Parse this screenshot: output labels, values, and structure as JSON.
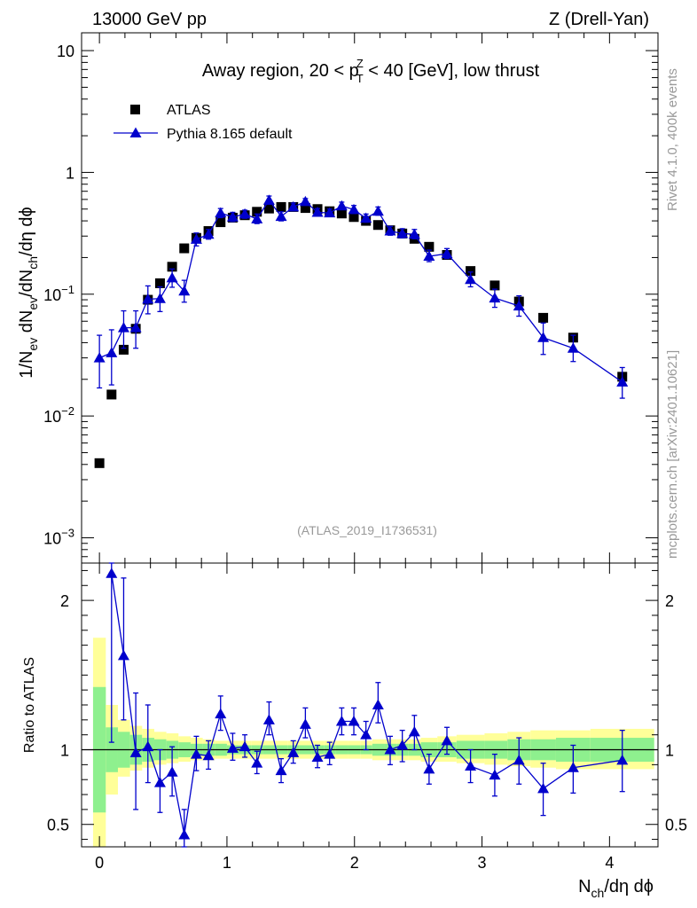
{
  "header": {
    "energy": "13000 GeV pp",
    "process": "Z (Drell-Yan)"
  },
  "side_labels": {
    "rivet": "Rivet 4.1.0,  400k events",
    "site": "mcplots.cern.ch [arXiv:2401.10621]"
  },
  "chart_data": {
    "type": "scatter",
    "title": "Away region, 20 < p_T^Z < 40 [GeV], low thrust",
    "title_parts": {
      "pre": "Away region, 20 < p",
      "sup": "Z",
      "sub": "T",
      "post": " < 40 [GeV], low thrust"
    },
    "watermark": "(ATLAS_2019_I1736531)",
    "xlabel": "N_ch/dη dϕ",
    "ylabel": "1/N_ev dN_ev/dN_ch/dη dϕ",
    "xlim": [
      -0.14,
      4.38
    ],
    "ylim": [
      0.00062,
      14
    ],
    "yscale": "log",
    "x_ticks": [
      "0",
      "1",
      "2",
      "3",
      "4"
    ],
    "y_ticks": [
      {
        "base": "10",
        "exp": "−3",
        "value": 0.001
      },
      {
        "base": "10",
        "exp": "−2",
        "value": 0.01
      },
      {
        "base": "10",
        "exp": "−1",
        "value": 0.1
      },
      {
        "base": "1",
        "exp": "",
        "value": 1
      },
      {
        "base": "10",
        "exp": "",
        "value": 10
      }
    ],
    "legend": [
      "ATLAS",
      "Pythia 8.165 default"
    ],
    "colors": {
      "data": "#000000",
      "mc": "#0000cc",
      "band_inner": "#8ef08e",
      "band_outer": "#ffff99"
    },
    "atlas": {
      "name": "ATLAS",
      "x": [
        0.0,
        0.095,
        0.19,
        0.285,
        0.38,
        0.475,
        0.57,
        0.665,
        0.76,
        0.855,
        0.95,
        1.045,
        1.14,
        1.235,
        1.33,
        1.425,
        1.52,
        1.615,
        1.71,
        1.805,
        1.9,
        1.995,
        2.09,
        2.185,
        2.28,
        2.375,
        2.47,
        2.585,
        2.725,
        2.91,
        3.1,
        3.29,
        3.48,
        3.715,
        4.1
      ],
      "y": [
        0.0041,
        0.015,
        0.035,
        0.052,
        0.09,
        0.123,
        0.168,
        0.238,
        0.29,
        0.33,
        0.39,
        0.425,
        0.445,
        0.475,
        0.505,
        0.52,
        0.52,
        0.51,
        0.5,
        0.48,
        0.46,
        0.43,
        0.4,
        0.37,
        0.335,
        0.315,
        0.285,
        0.245,
        0.21,
        0.155,
        0.118,
        0.087,
        0.064,
        0.044,
        0.021
      ]
    },
    "pythia": {
      "name": "Pythia 8.165 default",
      "x": [
        0.0,
        0.095,
        0.19,
        0.285,
        0.38,
        0.475,
        0.57,
        0.665,
        0.76,
        0.855,
        0.95,
        1.045,
        1.14,
        1.235,
        1.33,
        1.425,
        1.52,
        1.615,
        1.71,
        1.805,
        1.9,
        1.995,
        2.09,
        2.185,
        2.28,
        2.375,
        2.47,
        2.585,
        2.725,
        2.91,
        3.1,
        3.29,
        3.48,
        3.715,
        4.1
      ],
      "y": [
        0.03,
        0.033,
        0.053,
        0.053,
        0.091,
        0.092,
        0.136,
        0.106,
        0.282,
        0.31,
        0.465,
        0.43,
        0.455,
        0.415,
        0.59,
        0.435,
        0.52,
        0.575,
        0.47,
        0.465,
        0.53,
        0.495,
        0.42,
        0.48,
        0.33,
        0.315,
        0.31,
        0.205,
        0.215,
        0.132,
        0.093,
        0.08,
        0.044,
        0.036,
        0.019
      ],
      "y_lo": [
        0.017,
        0.018,
        0.036,
        0.036,
        0.069,
        0.072,
        0.114,
        0.086,
        0.249,
        0.283,
        0.425,
        0.395,
        0.42,
        0.38,
        0.55,
        0.4,
        0.485,
        0.54,
        0.44,
        0.435,
        0.495,
        0.46,
        0.39,
        0.445,
        0.305,
        0.29,
        0.285,
        0.185,
        0.196,
        0.115,
        0.078,
        0.066,
        0.032,
        0.028,
        0.014
      ],
      "y_hi": [
        0.046,
        0.051,
        0.073,
        0.073,
        0.117,
        0.115,
        0.161,
        0.13,
        0.318,
        0.34,
        0.505,
        0.47,
        0.49,
        0.455,
        0.64,
        0.475,
        0.56,
        0.61,
        0.505,
        0.5,
        0.57,
        0.535,
        0.455,
        0.52,
        0.36,
        0.345,
        0.34,
        0.23,
        0.237,
        0.152,
        0.11,
        0.097,
        0.058,
        0.046,
        0.025
      ]
    },
    "ratio": {
      "ylabel": "Ratio to ATLAS",
      "ylim": [
        0.35,
        2.25
      ],
      "y_ticks": [
        0.5,
        1,
        2
      ],
      "y_tick_labels": [
        "0.5",
        "1",
        "2"
      ],
      "x": [
        0.0,
        0.095,
        0.19,
        0.285,
        0.38,
        0.475,
        0.57,
        0.665,
        0.76,
        0.855,
        0.95,
        1.045,
        1.14,
        1.235,
        1.33,
        1.425,
        1.52,
        1.615,
        1.71,
        1.805,
        1.9,
        1.995,
        2.09,
        2.185,
        2.28,
        2.375,
        2.47,
        2.585,
        2.725,
        2.91,
        3.1,
        3.29,
        3.48,
        3.715,
        4.1
      ],
      "y": [
        null,
        2.18,
        1.63,
        0.98,
        1.02,
        0.78,
        0.85,
        0.43,
        0.97,
        0.96,
        1.24,
        1.01,
        1.02,
        0.91,
        1.2,
        0.86,
        0.98,
        1.17,
        0.95,
        0.97,
        1.19,
        1.19,
        1.1,
        1.3,
        1.0,
        1.03,
        1.12,
        0.87,
        1.06,
        0.89,
        0.83,
        0.93,
        0.74,
        0.88,
        0.93
      ],
      "y_lo": [
        null,
        1.05,
        1.2,
        0.6,
        0.78,
        0.58,
        0.69,
        0.33,
        0.86,
        0.87,
        1.13,
        0.93,
        0.95,
        0.84,
        1.1,
        0.78,
        0.91,
        1.08,
        0.88,
        0.9,
        1.1,
        1.1,
        1.0,
        1.18,
        0.9,
        0.92,
        1.0,
        0.77,
        0.97,
        0.78,
        0.69,
        0.77,
        0.56,
        0.71,
        0.72
      ],
      "y_hi": [
        null,
        2.25,
        2.15,
        1.38,
        1.3,
        1.0,
        1.02,
        0.6,
        1.09,
        1.06,
        1.36,
        1.11,
        1.1,
        0.99,
        1.32,
        0.94,
        1.06,
        1.28,
        1.03,
        1.05,
        1.28,
        1.28,
        1.19,
        1.45,
        1.09,
        1.13,
        1.23,
        0.97,
        1.15,
        1.0,
        0.97,
        1.08,
        0.91,
        1.03,
        1.13
      ],
      "band_edges": [
        -0.05,
        0.05,
        0.145,
        0.24,
        0.335,
        0.43,
        0.525,
        0.62,
        0.715,
        0.81,
        0.905,
        1.0,
        1.095,
        1.19,
        1.285,
        1.38,
        1.475,
        1.57,
        1.665,
        1.76,
        1.855,
        1.95,
        2.045,
        2.14,
        2.235,
        2.33,
        2.425,
        2.52,
        2.65,
        2.8,
        3.02,
        3.2,
        3.38,
        3.58,
        3.85,
        4.35
      ],
      "band_inner": [
        [
          0.58,
          1.42
        ],
        [
          0.85,
          1.15
        ],
        [
          0.88,
          1.12
        ],
        [
          0.9,
          1.1
        ],
        [
          0.92,
          1.08
        ],
        [
          0.93,
          1.07
        ],
        [
          0.94,
          1.06
        ],
        [
          0.95,
          1.05
        ],
        [
          0.96,
          1.04
        ],
        [
          0.96,
          1.04
        ],
        [
          0.96,
          1.04
        ],
        [
          0.97,
          1.03
        ],
        [
          0.97,
          1.03
        ],
        [
          0.97,
          1.03
        ],
        [
          0.97,
          1.03
        ],
        [
          0.97,
          1.03
        ],
        [
          0.97,
          1.03
        ],
        [
          0.97,
          1.03
        ],
        [
          0.97,
          1.03
        ],
        [
          0.97,
          1.03
        ],
        [
          0.97,
          1.03
        ],
        [
          0.97,
          1.03
        ],
        [
          0.97,
          1.03
        ],
        [
          0.96,
          1.04
        ],
        [
          0.96,
          1.04
        ],
        [
          0.96,
          1.04
        ],
        [
          0.96,
          1.04
        ],
        [
          0.95,
          1.05
        ],
        [
          0.95,
          1.05
        ],
        [
          0.94,
          1.06
        ],
        [
          0.94,
          1.06
        ],
        [
          0.93,
          1.07
        ],
        [
          0.93,
          1.07
        ],
        [
          0.92,
          1.08
        ],
        [
          0.92,
          1.08
        ]
      ],
      "band_outer": [
        [
          0.3,
          1.75
        ],
        [
          0.7,
          1.3
        ],
        [
          0.82,
          1.2
        ],
        [
          0.86,
          1.16
        ],
        [
          0.88,
          1.14
        ],
        [
          0.9,
          1.12
        ],
        [
          0.91,
          1.11
        ],
        [
          0.92,
          1.09
        ],
        [
          0.93,
          1.08
        ],
        [
          0.93,
          1.07
        ],
        [
          0.94,
          1.06
        ],
        [
          0.94,
          1.06
        ],
        [
          0.94,
          1.06
        ],
        [
          0.94,
          1.06
        ],
        [
          0.94,
          1.06
        ],
        [
          0.94,
          1.06
        ],
        [
          0.94,
          1.06
        ],
        [
          0.94,
          1.06
        ],
        [
          0.94,
          1.06
        ],
        [
          0.94,
          1.06
        ],
        [
          0.94,
          1.06
        ],
        [
          0.94,
          1.06
        ],
        [
          0.94,
          1.06
        ],
        [
          0.93,
          1.07
        ],
        [
          0.93,
          1.07
        ],
        [
          0.93,
          1.07
        ],
        [
          0.93,
          1.07
        ],
        [
          0.92,
          1.08
        ],
        [
          0.92,
          1.09
        ],
        [
          0.91,
          1.1
        ],
        [
          0.9,
          1.11
        ],
        [
          0.89,
          1.12
        ],
        [
          0.88,
          1.13
        ],
        [
          0.87,
          1.13
        ],
        [
          0.87,
          1.14
        ]
      ]
    }
  }
}
